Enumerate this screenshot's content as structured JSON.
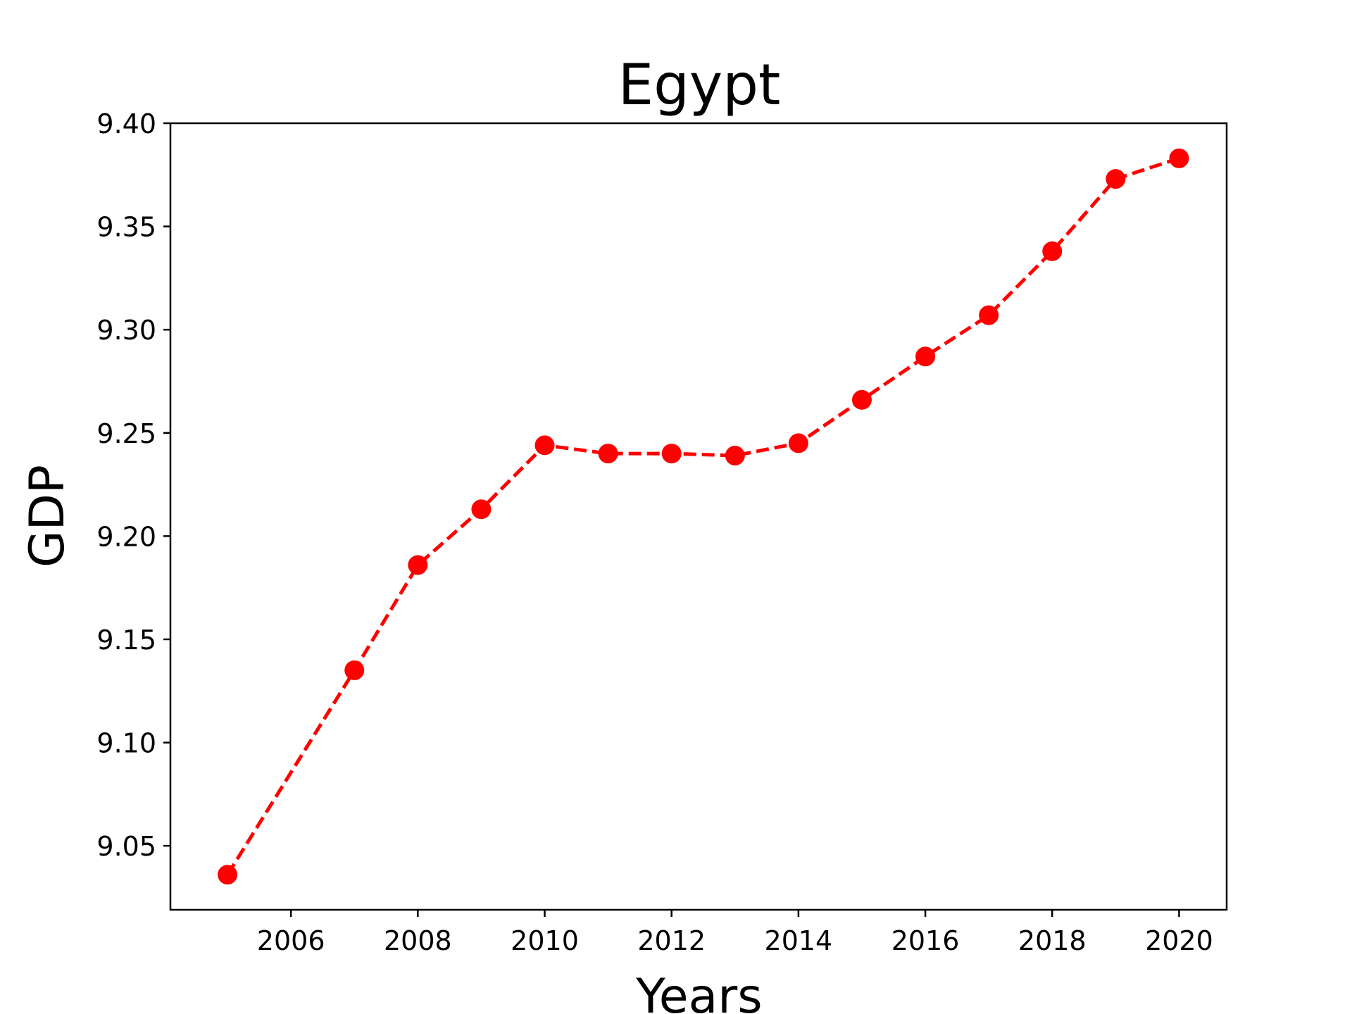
{
  "chart_data": {
    "type": "line",
    "title": "Egypt",
    "xlabel": "Years",
    "ylabel": "GDP",
    "xlim": [
      2004.1,
      2020.75
    ],
    "ylim": [
      9.019,
      9.4
    ],
    "x_ticks": [
      2006,
      2008,
      2010,
      2012,
      2014,
      2016,
      2018,
      2020
    ],
    "x_tick_labels": [
      "2006",
      "2008",
      "2010",
      "2012",
      "2014",
      "2016",
      "2018",
      "2020"
    ],
    "y_ticks": [
      9.05,
      9.1,
      9.15,
      9.2,
      9.25,
      9.3,
      9.35,
      9.4
    ],
    "y_tick_labels": [
      "9.05",
      "9.10",
      "9.15",
      "9.20",
      "9.25",
      "9.30",
      "9.35",
      "9.40"
    ],
    "grid": false,
    "series": [
      {
        "color": "#ff0000",
        "line_style": "dashed",
        "marker": "circle",
        "x": [
          2005,
          2007,
          2008,
          2009,
          2010,
          2011,
          2012,
          2013,
          2014,
          2015,
          2016,
          2017,
          2018,
          2019,
          2020
        ],
        "y": [
          9.036,
          9.135,
          9.186,
          9.213,
          9.244,
          9.24,
          9.24,
          9.239,
          9.245,
          9.266,
          9.287,
          9.307,
          9.338,
          9.373,
          9.383
        ]
      }
    ]
  }
}
